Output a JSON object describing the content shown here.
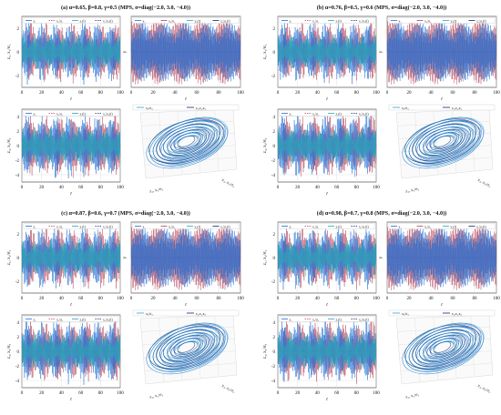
{
  "colors": {
    "blue": "#1f6fd6",
    "red": "#b5465c",
    "teal": "#2aa7b8",
    "navy": "#0b2a6b",
    "grid": "#d9d9d9",
    "axis": "#333333",
    "zero": "#222222"
  },
  "chart_data": [
    {
      "panel": "a",
      "title": "(a) α=0.65, β=0.8, γ=0.5 (MPS, σ=diag(−2.0, 3.0, −4.0))",
      "type": "line",
      "x_range": [
        0,
        100
      ],
      "x_ticks": [
        "0",
        "20",
        "40",
        "60",
        "80",
        "100"
      ],
      "y1_ticks": [
        "2",
        "0",
        "-2"
      ],
      "y3_ticks": [
        "4",
        "2",
        "0",
        "-2",
        "-4"
      ],
      "xlabel": "t",
      "ylabel_1": "z₁, x₁/σ₁",
      "ylabel_2": "y",
      "ylabel_3": "z₃, x₃/σ₃",
      "legend_1": [
        "z₁",
        "x₁/σ₁",
        "z₁(t)",
        "x₁/σ₁(t)"
      ],
      "legend_2": [
        "y₂",
        "x₂/σ₂",
        "y₂(t)",
        "x₂/σ₂(t)"
      ],
      "legend_3": [
        "z₃",
        "x₃/σ₃",
        "z₃(t)",
        "x₃/σ₃(t)"
      ],
      "legend_4": [
        "x₃/σ₃",
        "z₁,z₂,z₃"
      ],
      "phase_axes": [
        "z₁, x₁/σ₁",
        "z₃, x₃/σ₃"
      ]
    },
    {
      "panel": "b",
      "title": "(b) α=0.76, β=0.5, γ=0.6 (MPS, σ=diag(−2.0, 3.0, −4.0))",
      "type": "line",
      "x_range": [
        0,
        100
      ],
      "x_ticks": [
        "0",
        "20",
        "40",
        "60",
        "80",
        "100"
      ],
      "y1_ticks": [
        "2",
        "0",
        "-2"
      ],
      "y3_ticks": [
        "4",
        "2",
        "0",
        "-2",
        "-4"
      ],
      "xlabel": "t",
      "ylabel_1": "z₁, x₁/σ₁",
      "ylabel_2": "y",
      "ylabel_3": "z₃, x₃/σ₃",
      "legend_1": [
        "z₁",
        "x₁/σ₁",
        "z₁(t)",
        "x₁/σ₁(t)"
      ],
      "legend_2": [
        "y₂",
        "x₂/σ₂",
        "y₂(t)",
        "x₂/σ₂(t)"
      ],
      "legend_3": [
        "z₃",
        "x₃/σ₃",
        "z₃(t)",
        "x₃/σ₃(t)"
      ],
      "legend_4": [
        "x₃/σ₃",
        "z₁,z₂,z₃"
      ],
      "phase_axes": [
        "z₁, x₁/σ₁",
        "z₃, x₃/σ₃"
      ]
    },
    {
      "panel": "c",
      "title": "(c) α=0.87, β=0.6, γ=0.7 (MPS, σ=diag(−2.0, 3.0, −4.0))",
      "type": "line",
      "x_range": [
        0,
        100
      ],
      "x_ticks": [
        "0",
        "20",
        "40",
        "60",
        "80",
        "100"
      ],
      "y1_ticks": [
        "2",
        "0",
        "-2"
      ],
      "y3_ticks": [
        "4",
        "2",
        "0",
        "-2",
        "-4"
      ],
      "xlabel": "t",
      "ylabel_1": "z₁, x₁/σ₁",
      "ylabel_2": "y",
      "ylabel_3": "z₃, x₃/σ₃",
      "legend_1": [
        "z₁",
        "x₁/σ₁",
        "z₁(t)",
        "x₁/σ₁(t)"
      ],
      "legend_2": [
        "y₂",
        "x₂/σ₂",
        "y₂(t)",
        "x₂/σ₂(t)"
      ],
      "legend_3": [
        "z₃",
        "x₃/σ₃",
        "z₃(t)",
        "x₃/σ₃(t)"
      ],
      "legend_4": [
        "x₃/σ₃",
        "z₁,z₂,z₃"
      ],
      "phase_axes": [
        "z₁, x₁/σ₁",
        "z₃, x₃/σ₃"
      ]
    },
    {
      "panel": "d",
      "title": "(d) α=0.98, β=0.7, γ=0.8 (MPS, σ=diag(−2.0, 3.0, −4.0))",
      "type": "line",
      "x_range": [
        0,
        100
      ],
      "x_ticks": [
        "0",
        "20",
        "40",
        "60",
        "80",
        "100"
      ],
      "y1_ticks": [
        "2",
        "0",
        "-2"
      ],
      "y3_ticks": [
        "4",
        "2",
        "0",
        "-2",
        "-4"
      ],
      "xlabel": "t",
      "ylabel_1": "z₁, x₁/σ₁",
      "ylabel_2": "y",
      "ylabel_3": "z₃, x₃/σ₃",
      "legend_1": [
        "z₁",
        "x₁/σ₁",
        "z₁(t)",
        "x₁/σ₁(t)"
      ],
      "legend_2": [
        "y₂",
        "x₂/σ₂",
        "y₂(t)",
        "x₂/σ₂(t)"
      ],
      "legend_3": [
        "z₃",
        "x₃/σ₃",
        "z₃(t)",
        "x₃/σ₃(t)"
      ],
      "legend_4": [
        "x₃/σ₃",
        "z₁,z₂,z₃"
      ],
      "phase_axes": [
        "z₁, x₁/σ₁",
        "z₃, x₃/σ₃"
      ]
    }
  ]
}
